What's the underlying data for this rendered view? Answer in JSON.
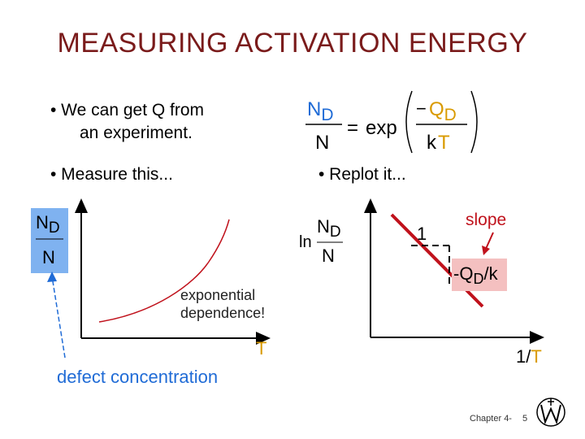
{
  "title": "MEASURING ACTIVATION ENERGY",
  "bullets": {
    "b1_line1": "• We can get Q  from",
    "b1_line2": "an experiment.",
    "b2": "• Measure this...",
    "b3": "• Replot it..."
  },
  "equation": {
    "lhs_num_main": "N",
    "lhs_num_sub": "D",
    "lhs_den": "N",
    "equals": "=",
    "func": "exp",
    "minus": "−",
    "rhs_num_main": "Q",
    "rhs_num_sub": "D",
    "rhs_den_k": "k",
    "rhs_den_T": "T"
  },
  "left_plot": {
    "ylabel_main": "N",
    "ylabel_sub": "D",
    "ylabel_den": "N",
    "xlabel": "T",
    "curve_note_1": "exponential",
    "curve_note_2": "dependence!",
    "caption": "defect concentration"
  },
  "right_plot": {
    "ylabel_ln": "ln",
    "ylabel_main": "N",
    "ylabel_sub": "D",
    "ylabel_den": "N",
    "xlabel_1": "1/",
    "xlabel_T": "T",
    "run_label": "1",
    "slope_label": "slope",
    "slope_value_main": "-Q",
    "slope_value_sub": "D",
    "slope_value_tail": "/k"
  },
  "footer": {
    "chapter": "Chapter 4-",
    "page": "5"
  },
  "colors": {
    "title": "#7a1b1b",
    "blue": "#1f6bd6",
    "gold": "#d99a00",
    "red": "#d0141f",
    "label_box": "#7fb2f0",
    "slope_box": "#f4c0c0"
  }
}
